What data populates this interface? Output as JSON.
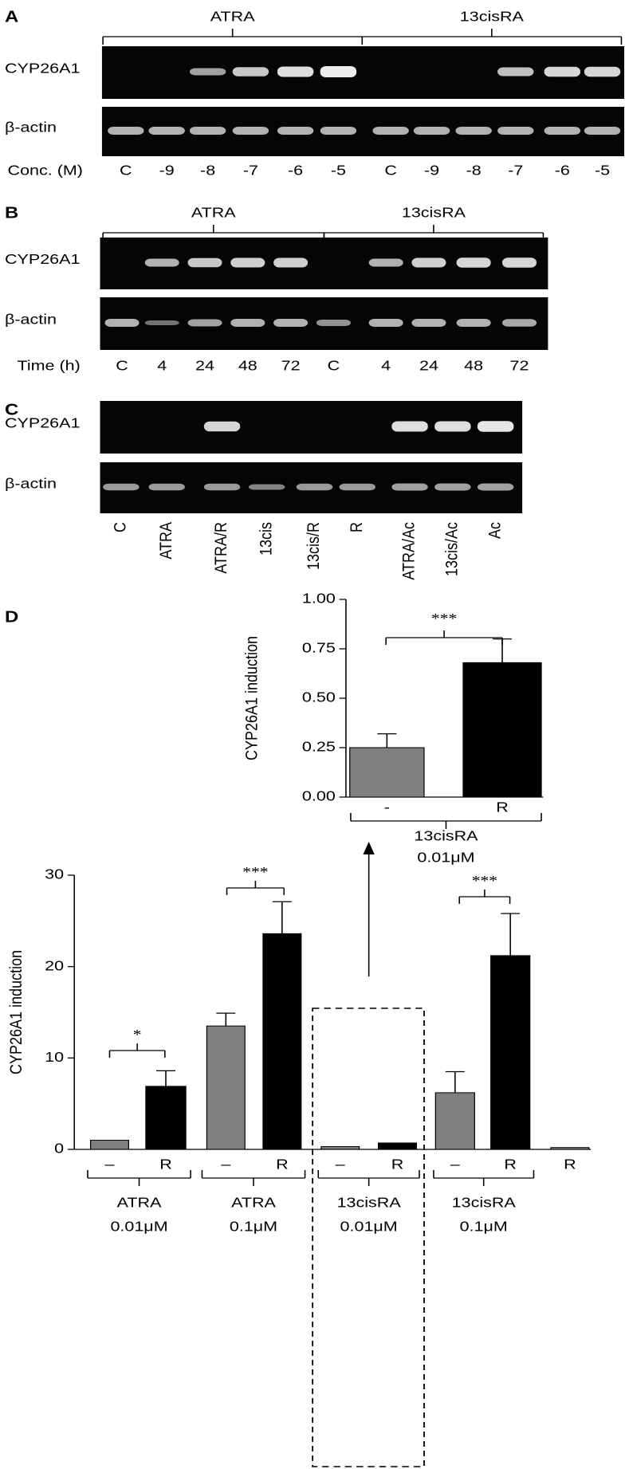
{
  "panels": [
    {
      "label": "A",
      "groups": [
        "ATRA",
        "13cisRA"
      ],
      "rows": [
        "CYP26A1",
        "β-actin"
      ],
      "lane_axis_label": "Conc. (M)",
      "lanes": [
        "C",
        "-9",
        "-8",
        "-7",
        "-6",
        "-5",
        "C",
        "-9",
        "-8",
        "-7",
        "-6",
        "-5"
      ]
    },
    {
      "label": "B",
      "groups": [
        "ATRA",
        "13cisRA"
      ],
      "rows": [
        "CYP26A1",
        "β-actin"
      ],
      "lane_axis_label": "Time (h)",
      "lanes": [
        "C",
        "4",
        "24",
        "48",
        "72",
        "C",
        "4",
        "24",
        "48",
        "72"
      ]
    },
    {
      "label": "C",
      "rows": [
        "CYP26A1",
        "β-actin"
      ],
      "lanes": [
        "C",
        "ATRA",
        "ATRA/R",
        "13cis",
        "13cis/R",
        "R",
        "ATRA/Ac",
        "13cis/Ac",
        "Ac"
      ]
    }
  ],
  "panel_d_label": "D",
  "chart_data": [
    {
      "type": "bar",
      "ylabel": "CYP26A1 induction",
      "categories": [
        "-",
        "R"
      ],
      "values": [
        0.25,
        0.68
      ],
      "errors": [
        0.07,
        0.12
      ],
      "colors": [
        "#808080",
        "#000000"
      ],
      "ylim": [
        0,
        1
      ],
      "yticks": [
        {
          "value": 0,
          "label": "0.00"
        },
        {
          "value": 0.25,
          "label": "0.25"
        },
        {
          "value": 0.5,
          "label": "0.50"
        },
        {
          "value": 0.75,
          "label": "0.75"
        },
        {
          "value": 1,
          "label": "1.00"
        }
      ],
      "groups": [
        {
          "name": "13cisRA",
          "dose": "0.01μM"
        }
      ],
      "annotations": [
        "***"
      ]
    },
    {
      "type": "bar",
      "ylabel": "CYP26A1 induction",
      "categories": [
        "–",
        "R",
        "–",
        "R",
        "–",
        "R",
        "–",
        "R",
        "R"
      ],
      "values": [
        1.0,
        6.9,
        13.5,
        23.6,
        0.3,
        0.7,
        6.2,
        21.2,
        0.2
      ],
      "errors": [
        null,
        1.7,
        1.4,
        3.5,
        null,
        null,
        2.3,
        4.6,
        null
      ],
      "colors": [
        "#808080",
        "#000000",
        "#808080",
        "#000000",
        "#808080",
        "#000000",
        "#808080",
        "#000000",
        "#808080"
      ],
      "ylim": [
        0,
        30
      ],
      "yticks": [
        0,
        10,
        20,
        30
      ],
      "groups": [
        {
          "name": "ATRA",
          "dose": "0.01μM"
        },
        {
          "name": "ATRA",
          "dose": "0.1μM"
        },
        {
          "name": "13cisRA",
          "dose": "0.01μM"
        },
        {
          "name": "13cisRA",
          "dose": "0.1μM"
        }
      ],
      "annotations": [
        "*",
        "***",
        "***"
      ]
    }
  ]
}
